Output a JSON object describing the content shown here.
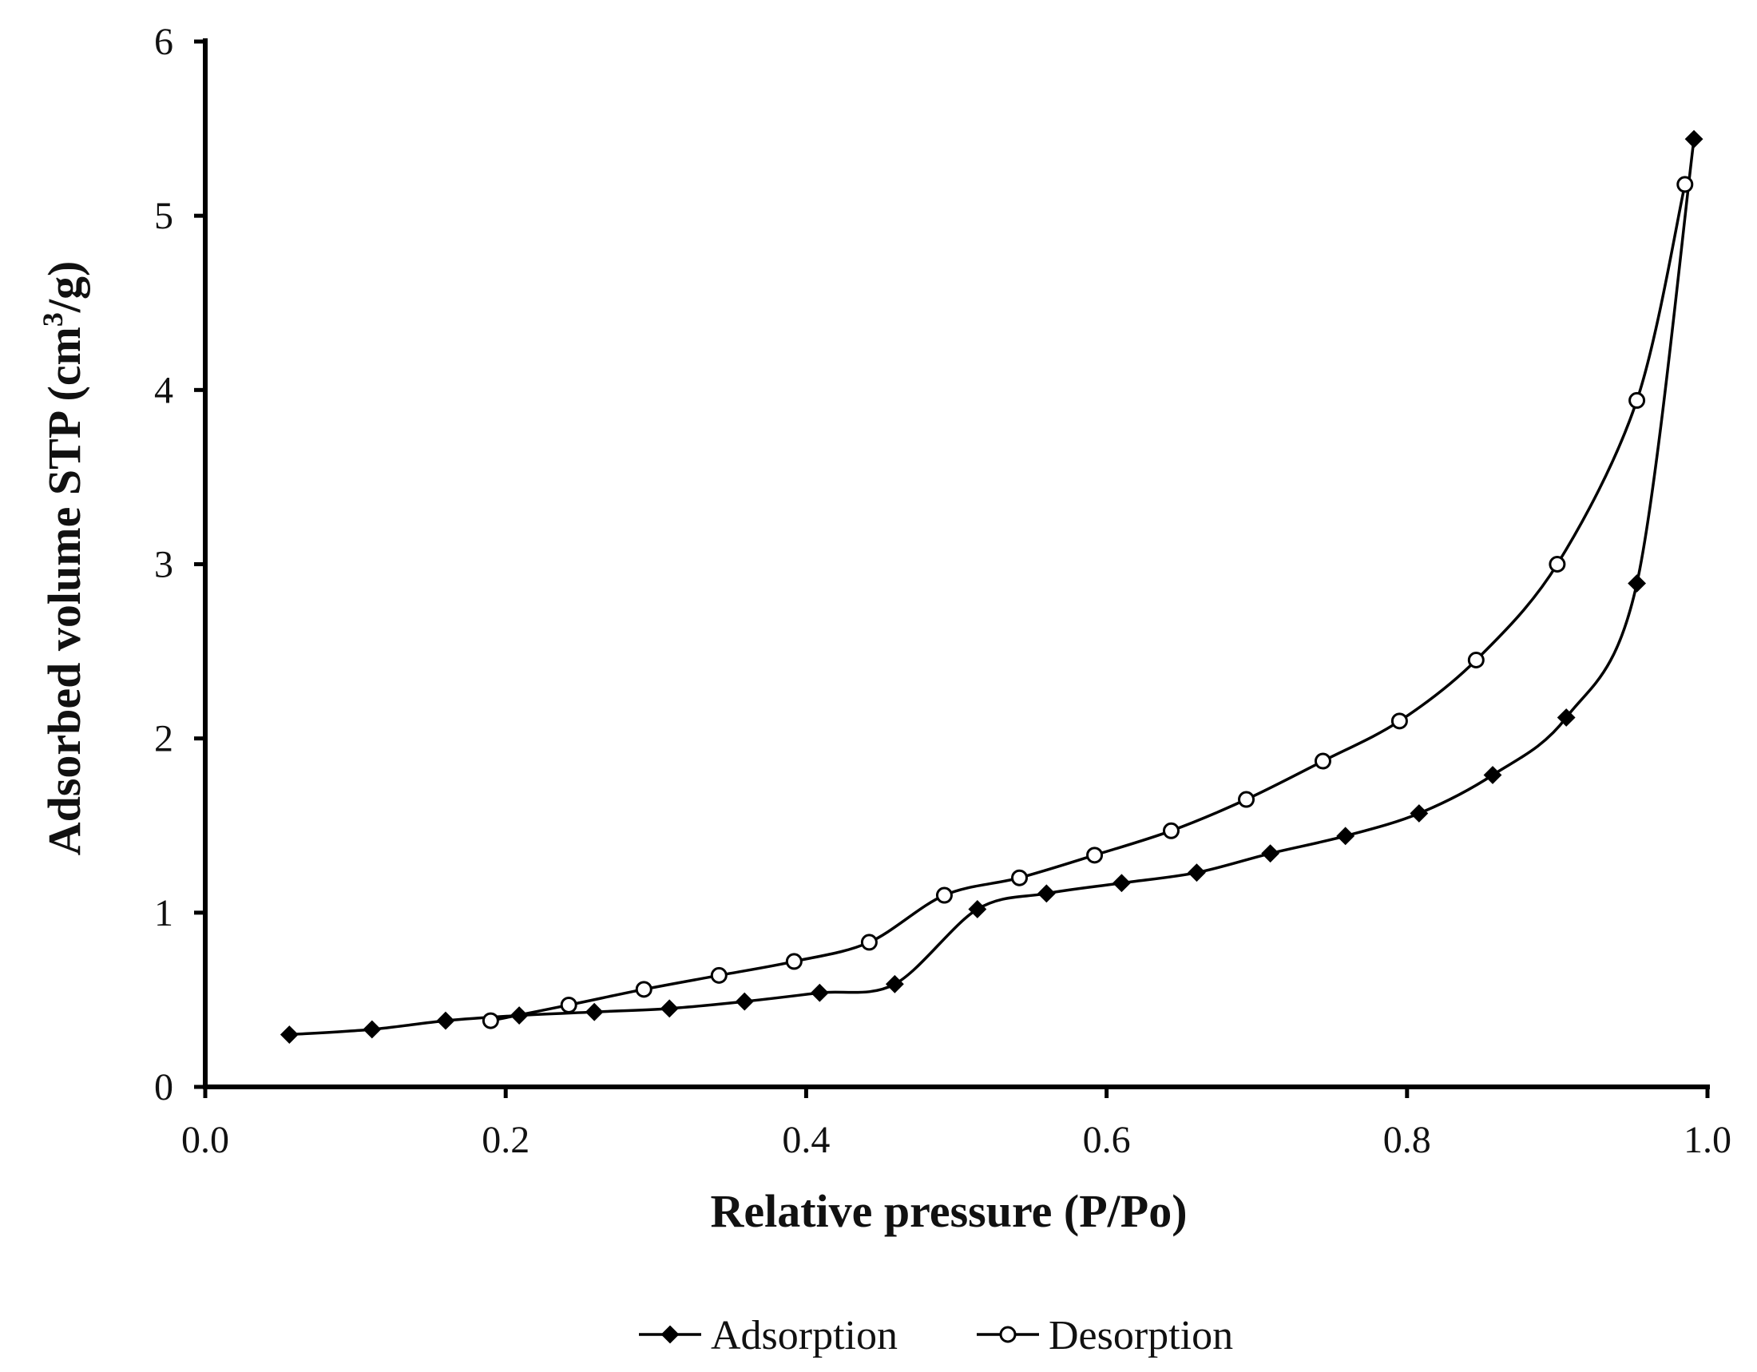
{
  "chart_data": {
    "type": "line",
    "title": "",
    "xlabel": "Relative pressure (P/Po)",
    "ylabel_main": "Adsorbed volume STP (cm",
    "ylabel_sup": "3",
    "ylabel_tail": "/g)",
    "xlim": [
      0.0,
      1.0
    ],
    "ylim": [
      0,
      6
    ],
    "xticks": [
      "0.0",
      "0.2",
      "0.4",
      "0.6",
      "0.8",
      "1.0"
    ],
    "yticks": [
      "0",
      "1",
      "2",
      "3",
      "4",
      "5",
      "6"
    ],
    "grid": false,
    "legend_position": "bottom-center",
    "series": [
      {
        "name": "Adsorption",
        "marker": "diamond-filled",
        "x": [
          0.056,
          0.111,
          0.16,
          0.209,
          0.259,
          0.309,
          0.359,
          0.409,
          0.459,
          0.514,
          0.56,
          0.61,
          0.66,
          0.709,
          0.759,
          0.808,
          0.857,
          0.906,
          0.953,
          0.991
        ],
        "y": [
          0.3,
          0.33,
          0.38,
          0.41,
          0.43,
          0.45,
          0.49,
          0.54,
          0.59,
          1.02,
          1.11,
          1.17,
          1.23,
          1.34,
          1.44,
          1.57,
          1.79,
          2.12,
          2.89,
          5.44
        ]
      },
      {
        "name": "Desorption",
        "marker": "circle-open",
        "x": [
          0.19,
          0.242,
          0.292,
          0.342,
          0.392,
          0.442,
          0.492,
          0.542,
          0.592,
          0.643,
          0.693,
          0.744,
          0.795,
          0.846,
          0.9,
          0.953,
          0.985
        ],
        "y": [
          0.38,
          0.47,
          0.56,
          0.64,
          0.72,
          0.83,
          1.1,
          1.2,
          1.33,
          1.47,
          1.65,
          1.87,
          2.1,
          2.45,
          3.0,
          3.94,
          5.18
        ]
      }
    ]
  }
}
